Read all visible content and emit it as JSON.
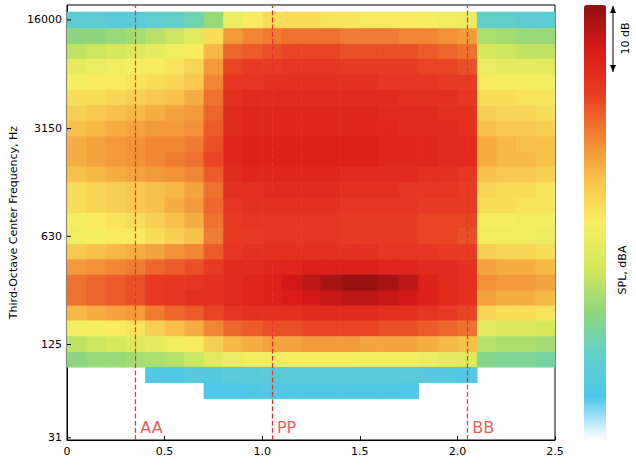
{
  "chart_data": {
    "type": "heatmap",
    "ylabel": "Third-Octave Center Frequency, Hz",
    "log": "y",
    "xlim": [
      0,
      2.5
    ],
    "xticks": [
      0,
      0.5,
      {
        "value": 1,
        "label": "1.0"
      },
      1.5,
      {
        "value": 2,
        "label": "2.0"
      },
      2.5
    ],
    "ylim": [
      30,
      20000
    ],
    "yticks": [
      31,
      125,
      630,
      3150,
      16000
    ],
    "x": [
      0.05,
      0.15,
      0.25,
      0.35,
      0.45,
      0.55,
      0.65,
      0.75,
      0.85,
      0.95,
      1.05,
      1.15,
      1.25,
      1.35,
      1.45,
      1.55,
      1.65,
      1.75,
      1.85,
      1.95,
      2.05,
      2.15,
      2.25,
      2.35,
      2.45
    ],
    "y": [
      16000,
      12500,
      10000,
      8000,
      6300,
      5000,
      4000,
      3150,
      2500,
      2000,
      1600,
      1250,
      1000,
      800,
      630,
      500,
      400,
      315,
      250,
      200,
      160,
      125,
      100,
      80,
      63
    ],
    "cells": [
      [
        36,
        36,
        35,
        35,
        37,
        38,
        40,
        45,
        55,
        58,
        60,
        60,
        60,
        59,
        59,
        58,
        58,
        58,
        57,
        56,
        55,
        38,
        37,
        36,
        36
      ],
      [
        44,
        44,
        45,
        46,
        48,
        50,
        53,
        60,
        68,
        70,
        71,
        72,
        72,
        72,
        71,
        71,
        71,
        70,
        70,
        69,
        68,
        47,
        46,
        45,
        45
      ],
      [
        49,
        50,
        51,
        52,
        54,
        56,
        58,
        65,
        73,
        74,
        75,
        76,
        76,
        76,
        75,
        75,
        75,
        75,
        74,
        73,
        72,
        51,
        50,
        49,
        49
      ],
      [
        54,
        55,
        56,
        57,
        58,
        59,
        61,
        68,
        76,
        77,
        77,
        78,
        78,
        78,
        77,
        77,
        77,
        77,
        76,
        76,
        75,
        55,
        54,
        54,
        53
      ],
      [
        57,
        58,
        58,
        59,
        60,
        61,
        63,
        70,
        78,
        78,
        79,
        79,
        79,
        79,
        79,
        79,
        78,
        78,
        78,
        77,
        77,
        58,
        57,
        57,
        56
      ],
      [
        60,
        60,
        61,
        62,
        63,
        64,
        66,
        72,
        79,
        80,
        80,
        80,
        80,
        80,
        80,
        80,
        80,
        79,
        79,
        79,
        78,
        60,
        60,
        59,
        59
      ],
      [
        62,
        63,
        64,
        65,
        66,
        67,
        68,
        73,
        80,
        81,
        81,
        81,
        81,
        81,
        81,
        81,
        80,
        80,
        80,
        79,
        79,
        62,
        61,
        61,
        60
      ],
      [
        64,
        65,
        66,
        67,
        68,
        68,
        69,
        74,
        80,
        81,
        81,
        81,
        81,
        81,
        81,
        81,
        81,
        80,
        80,
        80,
        79,
        64,
        63,
        63,
        62
      ],
      [
        66,
        67,
        68,
        69,
        70,
        70,
        71,
        75,
        81,
        82,
        82,
        82,
        82,
        82,
        82,
        82,
        81,
        81,
        81,
        80,
        80,
        66,
        65,
        64,
        64
      ],
      [
        66,
        67,
        68,
        69,
        70,
        71,
        72,
        76,
        81,
        82,
        82,
        82,
        82,
        82,
        82,
        82,
        81,
        81,
        81,
        80,
        80,
        66,
        65,
        65,
        64
      ],
      [
        64,
        65,
        66,
        67,
        68,
        69,
        70,
        74,
        80,
        81,
        81,
        81,
        81,
        81,
        80,
        80,
        80,
        80,
        79,
        79,
        78,
        64,
        63,
        63,
        62
      ],
      [
        60,
        61,
        62,
        63,
        64,
        65,
        67,
        72,
        79,
        79,
        80,
        80,
        80,
        80,
        79,
        79,
        79,
        78,
        78,
        78,
        77,
        61,
        60,
        60,
        59
      ],
      [
        60,
        61,
        62,
        63,
        64,
        66,
        68,
        73,
        78,
        79,
        79,
        79,
        79,
        79,
        78,
        78,
        78,
        78,
        77,
        77,
        77,
        60,
        60,
        59,
        59
      ],
      [
        57,
        58,
        59,
        60,
        62,
        64,
        66,
        72,
        77,
        78,
        78,
        78,
        78,
        78,
        77,
        77,
        77,
        77,
        76,
        76,
        76,
        57,
        57,
        56,
        56
      ],
      [
        56,
        57,
        58,
        58,
        60,
        62,
        64,
        71,
        77,
        77,
        78,
        78,
        78,
        78,
        77,
        77,
        77,
        77,
        76,
        76,
        75,
        56,
        56,
        56,
        55
      ],
      [
        63,
        64,
        65,
        66,
        67,
        69,
        70,
        74,
        78,
        79,
        79,
        79,
        79,
        79,
        79,
        79,
        78,
        78,
        78,
        77,
        77,
        62,
        61,
        61,
        60
      ],
      [
        68,
        69,
        70,
        71,
        73,
        74,
        75,
        77,
        80,
        80,
        81,
        81,
        82,
        82,
        82,
        82,
        81,
        81,
        80,
        80,
        79,
        67,
        66,
        66,
        65
      ],
      [
        72,
        73,
        74,
        75,
        77,
        78,
        78,
        79,
        80,
        81,
        82,
        84,
        86,
        88,
        89,
        89,
        88,
        86,
        82,
        80,
        79,
        69,
        68,
        68,
        67
      ],
      [
        72,
        73,
        74,
        75,
        77,
        78,
        79,
        79,
        80,
        81,
        82,
        83,
        84,
        85,
        86,
        86,
        85,
        84,
        82,
        80,
        79,
        67,
        66,
        66,
        65
      ],
      [
        65,
        66,
        67,
        68,
        71,
        73,
        74,
        76,
        78,
        79,
        79,
        79,
        80,
        80,
        80,
        80,
        79,
        79,
        78,
        77,
        76,
        61,
        60,
        60,
        59
      ],
      [
        56,
        57,
        58,
        59,
        62,
        64,
        66,
        70,
        73,
        74,
        75,
        75,
        76,
        76,
        76,
        76,
        75,
        75,
        74,
        73,
        72,
        53,
        52,
        52,
        51
      ],
      [
        49,
        50,
        51,
        52,
        54,
        56,
        58,
        62,
        65,
        66,
        67,
        67,
        68,
        68,
        68,
        67,
        67,
        67,
        66,
        65,
        64,
        48,
        47,
        47,
        46
      ],
      [
        44,
        45,
        45,
        46,
        47,
        48,
        50,
        53,
        55,
        56,
        56,
        57,
        57,
        57,
        57,
        56,
        56,
        56,
        55,
        54,
        53,
        43,
        42,
        42,
        41
      ],
      [
        null,
        null,
        null,
        null,
        33,
        33,
        34,
        34,
        35,
        35,
        35,
        35,
        35,
        35,
        35,
        35,
        35,
        35,
        34,
        34,
        33,
        null,
        null,
        null,
        null
      ],
      [
        null,
        null,
        null,
        null,
        null,
        null,
        null,
        32,
        32,
        33,
        33,
        33,
        33,
        33,
        33,
        33,
        33,
        32,
        null,
        null,
        null,
        null,
        null,
        null,
        null
      ]
    ],
    "colorbar": {
      "label": "SPL, dBA",
      "range": [
        25,
        90
      ],
      "scale_bar": {
        "value": 10,
        "label": "10 dB"
      }
    },
    "annotations": [
      {
        "x": 0.35,
        "label": "AA"
      },
      {
        "x": 1.05,
        "label": "PP"
      },
      {
        "x": 2.05,
        "label": "BB"
      }
    ]
  }
}
